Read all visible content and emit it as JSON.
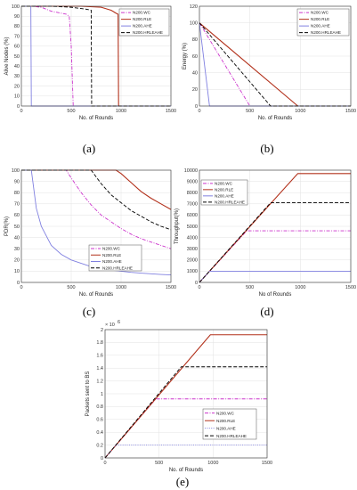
{
  "colors": {
    "WC": "#cc33cc",
    "RLE": "#b2301a",
    "AHE": "#8080e0",
    "HRLEAHE": "#000000"
  },
  "chart_data": [
    {
      "panel": "(a)",
      "type": "line",
      "xlabel": "No. of Rounds",
      "ylabel": "Alive Nodes (%)",
      "xlim": [
        0,
        1500
      ],
      "ylim": [
        0,
        100
      ],
      "xticks": [
        0,
        500,
        1000,
        1500
      ],
      "yticks": [
        0,
        10,
        20,
        30,
        40,
        50,
        60,
        70,
        80,
        90,
        100
      ],
      "legend_position": "top-right",
      "series": [
        {
          "name": "N200.WC",
          "key": "WC",
          "style": "dashdot",
          "x": [
            0,
            100,
            200,
            250,
            300,
            350,
            400,
            450,
            480,
            500,
            520,
            1500
          ],
          "y": [
            100,
            100,
            99,
            97,
            95,
            94,
            93,
            92,
            90,
            60,
            0,
            0
          ]
        },
        {
          "name": "N200.RLE",
          "key": "RLE",
          "style": "solid",
          "x": [
            0,
            600,
            800,
            900,
            950,
            970,
            975,
            1500
          ],
          "y": [
            100,
            100,
            99,
            96,
            93,
            92,
            0,
            0
          ]
        },
        {
          "name": "N200.AHE",
          "key": "AHE",
          "style": "solid",
          "x": [
            0,
            95,
            100,
            1500
          ],
          "y": [
            100,
            100,
            0,
            0
          ]
        },
        {
          "name": "N200.HRLEAHE",
          "key": "HRLEAHE",
          "style": "dashed",
          "x": [
            0,
            300,
            500,
            650,
            700,
            705,
            1500
          ],
          "y": [
            100,
            100,
            99,
            97,
            96,
            0,
            0
          ]
        }
      ]
    },
    {
      "panel": "(b)",
      "type": "line",
      "xlabel": "No. of Rounds",
      "ylabel": "Energy (%)",
      "xlim": [
        0,
        1500
      ],
      "ylim": [
        0,
        120
      ],
      "xticks": [
        0,
        500,
        1000,
        1500
      ],
      "yticks": [
        0,
        20,
        40,
        60,
        80,
        100,
        120
      ],
      "legend_position": "top-right",
      "series": [
        {
          "name": "N200.WC",
          "key": "WC",
          "style": "dashdot",
          "x": [
            0,
            500,
            1500
          ],
          "y": [
            100,
            0,
            0
          ]
        },
        {
          "name": "N200.RLE",
          "key": "RLE",
          "style": "solid",
          "x": [
            0,
            975,
            1500
          ],
          "y": [
            100,
            0,
            0
          ]
        },
        {
          "name": "N200.AHE",
          "key": "AHE",
          "style": "solid",
          "x": [
            0,
            100,
            1500
          ],
          "y": [
            100,
            0,
            0
          ]
        },
        {
          "name": "N200.HRLEAHE",
          "key": "HRLEAHE",
          "style": "dashed",
          "x": [
            0,
            705,
            1500
          ],
          "y": [
            100,
            0,
            0
          ]
        }
      ]
    },
    {
      "panel": "(c)",
      "type": "line",
      "xlabel": "No. of Rounds",
      "ylabel": "PDR(%)",
      "xlim": [
        0,
        1500
      ],
      "ylim": [
        0,
        100
      ],
      "xticks": [
        0,
        500,
        1000,
        1500
      ],
      "yticks": [
        0,
        10,
        20,
        30,
        40,
        50,
        60,
        70,
        80,
        90,
        100
      ],
      "legend_position": "bottom-right",
      "series": [
        {
          "name": "N200.WC",
          "key": "WC",
          "style": "dashdot",
          "x": [
            0,
            450,
            500,
            600,
            700,
            800,
            900,
            1000,
            1100,
            1200,
            1300,
            1400,
            1500
          ],
          "y": [
            100,
            100,
            93,
            80,
            69,
            60,
            54,
            48,
            43,
            39,
            36,
            33,
            30
          ]
        },
        {
          "name": "N200.RLE",
          "key": "RLE",
          "style": "solid",
          "x": [
            0,
            950,
            1000,
            1100,
            1200,
            1300,
            1400,
            1500
          ],
          "y": [
            100,
            100,
            97,
            89,
            81,
            75,
            70,
            65
          ]
        },
        {
          "name": "N200.AHE",
          "key": "AHE",
          "style": "solid",
          "x": [
            0,
            100,
            150,
            200,
            300,
            400,
            500,
            600,
            700,
            800,
            900,
            1000,
            1100,
            1200,
            1300,
            1400,
            1500
          ],
          "y": [
            100,
            100,
            66,
            50,
            33,
            25,
            20,
            17,
            14,
            12.5,
            11,
            10,
            9,
            8.3,
            7.7,
            7.1,
            6.7
          ]
        },
        {
          "name": "N200.HRLEAHE",
          "key": "HRLEAHE",
          "style": "dashed",
          "x": [
            0,
            700,
            800,
            900,
            1000,
            1100,
            1200,
            1300,
            1400,
            1500
          ],
          "y": [
            100,
            100,
            88,
            78,
            71,
            64,
            59,
            54,
            50,
            47
          ]
        }
      ]
    },
    {
      "panel": "(d)",
      "type": "line",
      "xlabel": "No of Rounds",
      "ylabel": "Throughput(%)",
      "xlim": [
        0,
        1500
      ],
      "ylim": [
        0,
        10000
      ],
      "xticks": [
        0,
        500,
        1000,
        1500
      ],
      "yticks": [
        0,
        1000,
        2000,
        3000,
        4000,
        5000,
        6000,
        7000,
        8000,
        9000,
        10000
      ],
      "legend_position": "top-left",
      "series": [
        {
          "name": "N200.WC",
          "key": "WC",
          "style": "dashdot",
          "x": [
            0,
            470,
            1500
          ],
          "y": [
            0,
            4600,
            4600
          ]
        },
        {
          "name": "N200.RLE",
          "key": "RLE",
          "style": "solid",
          "x": [
            0,
            975,
            1500
          ],
          "y": [
            0,
            9700,
            9700
          ]
        },
        {
          "name": "N200.AHE",
          "key": "AHE",
          "style": "solid",
          "x": [
            0,
            100,
            1500
          ],
          "y": [
            0,
            1000,
            1000
          ]
        },
        {
          "name": "N200.HRLEAHE",
          "key": "HRLEAHE",
          "style": "dashed",
          "x": [
            0,
            705,
            1500
          ],
          "y": [
            0,
            7100,
            7100
          ]
        }
      ]
    },
    {
      "panel": "(e)",
      "type": "line",
      "xlabel": "No. of Rounds",
      "ylabel": "Packets sent to BS",
      "exponent": "× 10",
      "exponent_power": "6",
      "xlim": [
        0,
        1500
      ],
      "ylim": [
        0,
        2
      ],
      "xticks": [
        0,
        500,
        1000,
        1500
      ],
      "yticks": [
        0,
        0.2,
        0.4,
        0.6,
        0.8,
        1,
        1.2,
        1.4,
        1.6,
        1.8,
        2
      ],
      "legend_position": "bottom-right",
      "series": [
        {
          "name": "N200.WC",
          "key": "WC",
          "style": "dashdot",
          "x": [
            0,
            470,
            1500
          ],
          "y": [
            0,
            0.92,
            0.92
          ]
        },
        {
          "name": "N200.RLE",
          "key": "RLE",
          "style": "solid",
          "x": [
            0,
            975,
            1500
          ],
          "y": [
            0,
            1.92,
            1.92
          ]
        },
        {
          "name": "N200.AHE",
          "key": "AHE",
          "style": "dotted",
          "x": [
            0,
            100,
            1500
          ],
          "y": [
            0,
            0.2,
            0.2
          ]
        },
        {
          "name": "N200.HRLEAHE",
          "key": "HRLEAHE",
          "style": "dashed",
          "x": [
            0,
            705,
            1500
          ],
          "y": [
            0,
            1.42,
            1.42
          ]
        }
      ]
    }
  ]
}
